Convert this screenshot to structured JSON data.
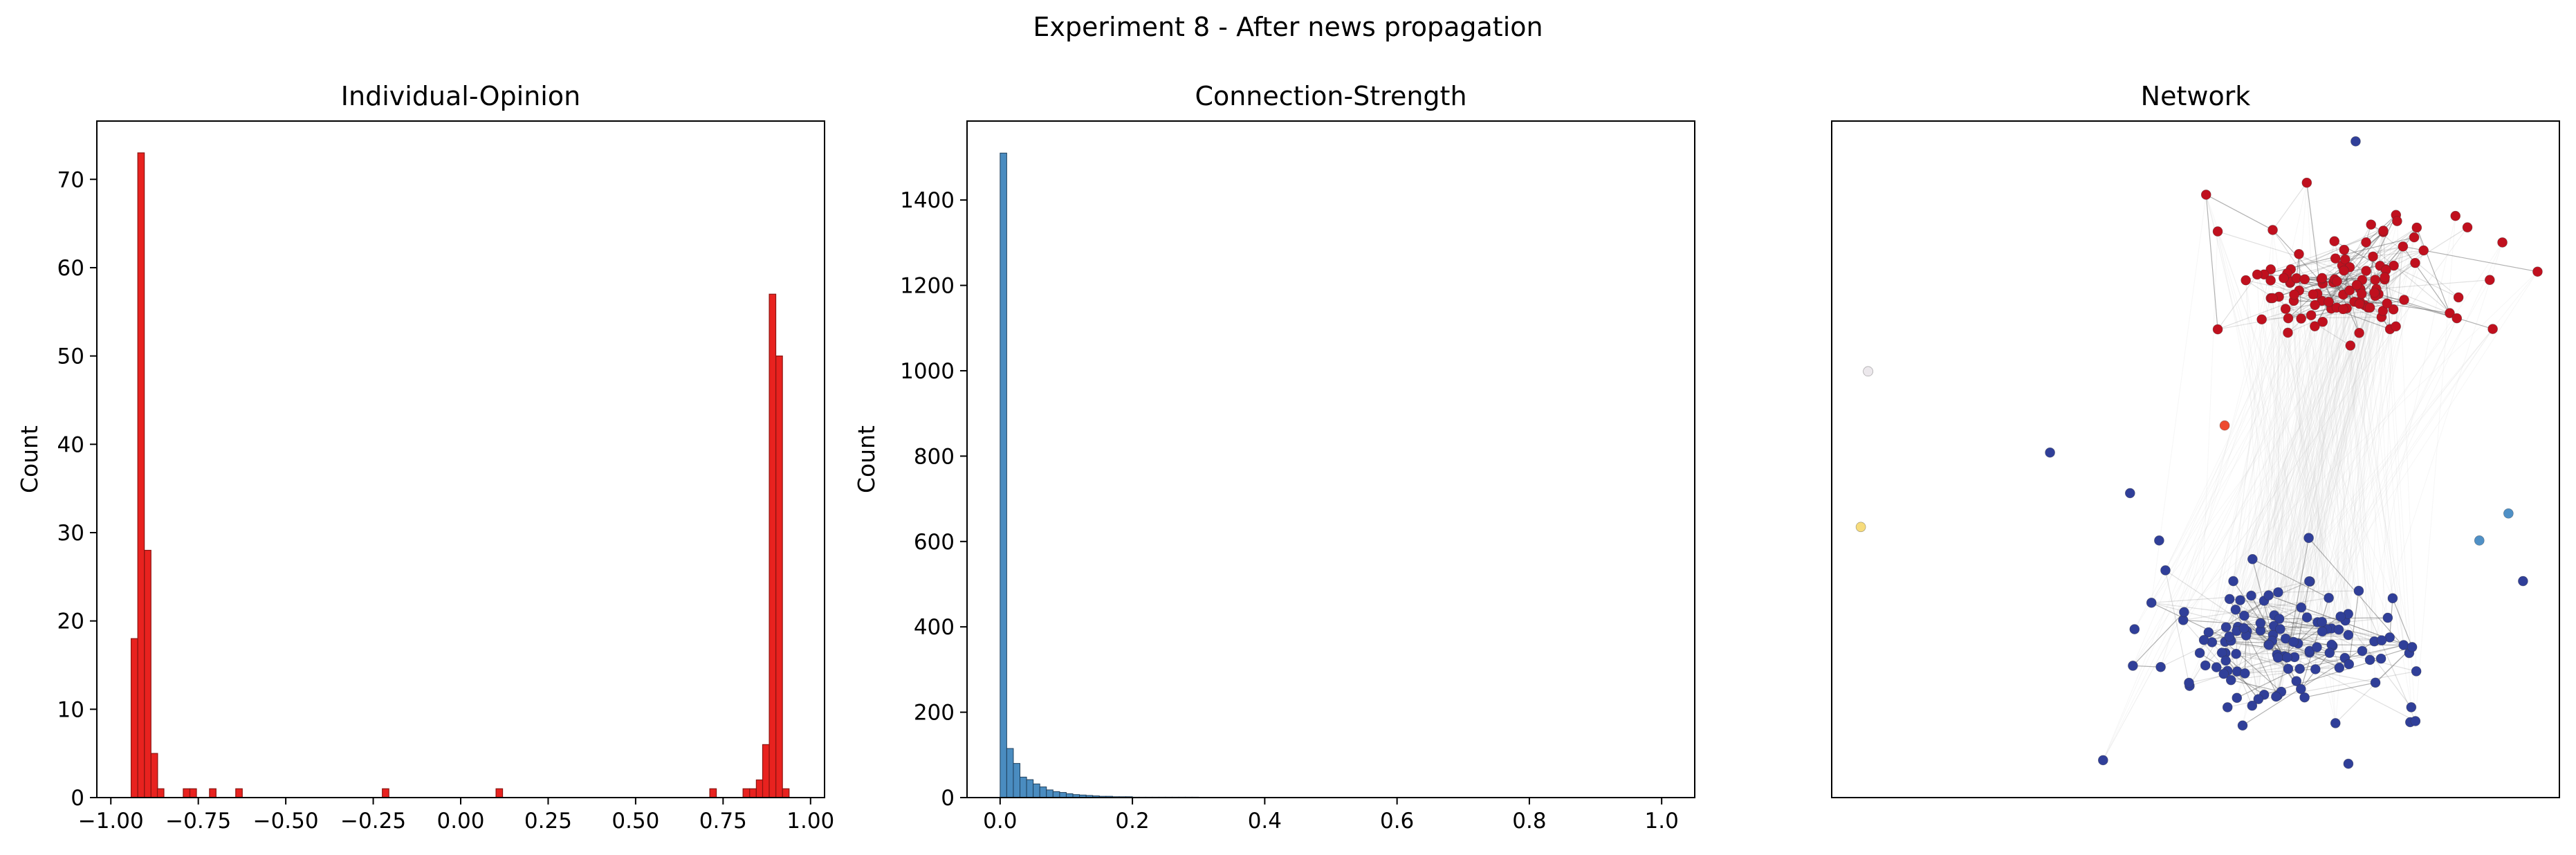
{
  "figure_title": "Experiment 8 - After news propagation",
  "chart_data": [
    {
      "type": "bar",
      "title": "Individual-Opinion",
      "xlabel": "",
      "ylabel": "Count",
      "xlim": [
        -1.04,
        1.04
      ],
      "ylim": [
        0,
        76.6
      ],
      "xticks": [
        -1.0,
        -0.75,
        -0.5,
        -0.25,
        0.0,
        0.25,
        0.5,
        0.75,
        1.0
      ],
      "xtick_labels": [
        "−1.00",
        "−0.75",
        "−0.50",
        "−0.25",
        "0.00",
        "0.25",
        "0.50",
        "0.75",
        "1.00"
      ],
      "yticks": [
        0,
        10,
        20,
        30,
        40,
        50,
        60,
        70
      ],
      "ytick_labels": [
        "0",
        "10",
        "20",
        "30",
        "40",
        "50",
        "60",
        "70"
      ],
      "bin_width": 0.0187,
      "color": "#e8221f",
      "edge_color": "#8c1410",
      "bins": [
        {
          "x": -0.942,
          "count": 18
        },
        {
          "x": -0.923,
          "count": 73
        },
        {
          "x": -0.904,
          "count": 28
        },
        {
          "x": -0.885,
          "count": 5
        },
        {
          "x": -0.867,
          "count": 1
        },
        {
          "x": -0.793,
          "count": 1
        },
        {
          "x": -0.774,
          "count": 1
        },
        {
          "x": -0.718,
          "count": 1
        },
        {
          "x": -0.643,
          "count": 1
        },
        {
          "x": -0.224,
          "count": 1
        },
        {
          "x": 0.101,
          "count": 1
        },
        {
          "x": 0.712,
          "count": 1
        },
        {
          "x": 0.807,
          "count": 1
        },
        {
          "x": 0.826,
          "count": 1
        },
        {
          "x": 0.845,
          "count": 2
        },
        {
          "x": 0.863,
          "count": 6
        },
        {
          "x": 0.882,
          "count": 57
        },
        {
          "x": 0.901,
          "count": 50
        },
        {
          "x": 0.92,
          "count": 1
        }
      ]
    },
    {
      "type": "bar",
      "title": "Connection-Strength",
      "xlabel": "",
      "ylabel": "Count",
      "xlim": [
        -0.05,
        1.05
      ],
      "ylim": [
        0,
        1585
      ],
      "xticks": [
        0.0,
        0.2,
        0.4,
        0.6,
        0.8,
        1.0
      ],
      "xtick_labels": [
        "0.0",
        "0.2",
        "0.4",
        "0.6",
        "0.8",
        "1.0"
      ],
      "yticks": [
        0,
        200,
        400,
        600,
        800,
        1000,
        1200,
        1400
      ],
      "ytick_labels": [
        "0",
        "200",
        "400",
        "600",
        "800",
        "1000",
        "1200",
        "1400"
      ],
      "bin_width": 0.01,
      "color": "#4a8cc0",
      "edge_color": "#1f3f5c",
      "counts": [
        1510,
        115,
        80,
        48,
        42,
        32,
        25,
        18,
        14,
        12,
        9,
        7,
        6,
        5,
        4,
        3,
        3,
        2,
        2,
        2,
        1,
        1,
        1,
        1,
        1,
        1,
        1,
        1,
        1,
        1
      ]
    },
    {
      "type": "scatter",
      "title": "Network",
      "xlabel": "",
      "ylabel": "",
      "xlim": [
        0,
        100
      ],
      "ylim": [
        0,
        100
      ],
      "axes_ticks": false,
      "node_colors": {
        "red": "#c0101e",
        "blue": "#303f99",
        "light_blue": "#4f90c6",
        "orange": "#ee4a2f",
        "yellow": "#f7dc7c",
        "pale": "#ece8ec"
      },
      "edge_color": "#555555",
      "clusters": [
        {
          "name": "red",
          "count": 110,
          "center": [
            70,
            76
          ],
          "spread": [
            18,
            9
          ]
        },
        {
          "name": "blue",
          "count": 120,
          "center": [
            63,
            23
          ],
          "spread": [
            19,
            10
          ]
        }
      ],
      "outliers": [
        {
          "x": 5,
          "y": 63,
          "color": "pale"
        },
        {
          "x": 4,
          "y": 40,
          "color": "yellow"
        },
        {
          "x": 54,
          "y": 55,
          "color": "orange"
        },
        {
          "x": 93,
          "y": 42,
          "color": "light_blue"
        },
        {
          "x": 89,
          "y": 38,
          "color": "light_blue"
        },
        {
          "x": 30,
          "y": 51,
          "color": "blue"
        },
        {
          "x": 41,
          "y": 45,
          "color": "blue"
        },
        {
          "x": 45,
          "y": 38,
          "color": "blue"
        },
        {
          "x": 95,
          "y": 32,
          "color": "blue"
        },
        {
          "x": 72,
          "y": 97,
          "color": "blue"
        },
        {
          "x": 71,
          "y": 5,
          "color": "blue"
        }
      ]
    }
  ]
}
